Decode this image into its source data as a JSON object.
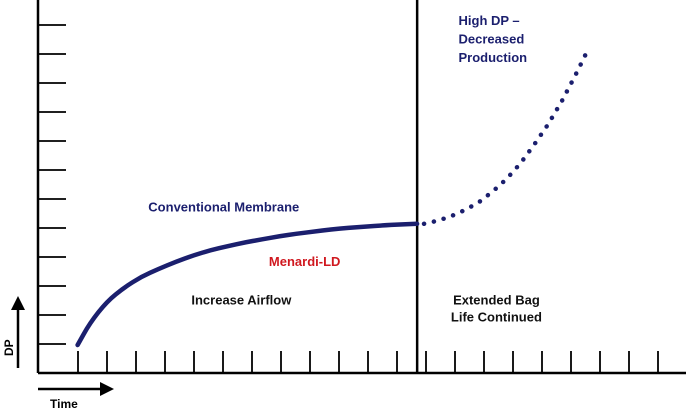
{
  "chart_data": {
    "type": "line",
    "title": "",
    "xlabel": "Time",
    "ylabel": "DP",
    "x_ticks": 21,
    "y_ticks": 12,
    "grid": false,
    "divider_label": "",
    "series": [
      {
        "name": "Conventional Membrane",
        "style": "solid",
        "color": "#1b1f6e",
        "x": [
          0.15,
          0.5,
          1.0,
          1.5,
          2.0,
          2.5,
          3.0,
          3.5,
          4.0,
          4.5,
          5.0,
          5.5,
          6.0,
          6.5,
          7.0,
          7.5,
          8.0,
          8.5,
          9.0,
          9.5,
          10.0
        ],
        "y": [
          0.9,
          1.6,
          2.3,
          2.75,
          3.1,
          3.35,
          3.58,
          3.78,
          3.95,
          4.08,
          4.2,
          4.3,
          4.4,
          4.48,
          4.55,
          4.62,
          4.67,
          4.71,
          4.75,
          4.78,
          4.8
        ]
      },
      {
        "name": "High DP – Decreased Production",
        "style": "dotted",
        "color": "#1b1f6e",
        "x": [
          10.2,
          10.6,
          11.0,
          11.4,
          11.8,
          12.2,
          12.6,
          13.0,
          13.4,
          13.8,
          14.2,
          14.6,
          15.0
        ],
        "y": [
          4.8,
          4.9,
          5.05,
          5.25,
          5.5,
          5.85,
          6.25,
          6.75,
          7.35,
          8.0,
          8.75,
          9.6,
          10.5
        ]
      }
    ],
    "annotations": [
      {
        "text": "Conventional Membrane",
        "color": "#1b1f6e",
        "x": 2.2,
        "y": 5.2
      },
      {
        "text": "Menardi-LD",
        "color": "#d0181f",
        "x": 5.7,
        "y": 3.45
      },
      {
        "text": "Increase Airflow",
        "color": "#111111",
        "x": 4.9,
        "y": 2.2
      },
      {
        "text": "Extended Bag",
        "color": "#111111",
        "x": 12.3,
        "y": 2.2
      },
      {
        "text": "Life Continued",
        "color": "#111111",
        "x": 12.3,
        "y": 1.65
      },
      {
        "text": "High DP –",
        "color": "#1b1f6e",
        "x": 11.2,
        "y": 11.2
      },
      {
        "text": "Decreased",
        "color": "#1b1f6e",
        "x": 11.2,
        "y": 10.6
      },
      {
        "text": "Production",
        "color": "#1b1f6e",
        "x": 11.2,
        "y": 10.0
      }
    ],
    "divider_x": 10.0,
    "xlim": [
      -1.0,
      17.8
    ],
    "ylim": [
      0,
      12
    ]
  }
}
